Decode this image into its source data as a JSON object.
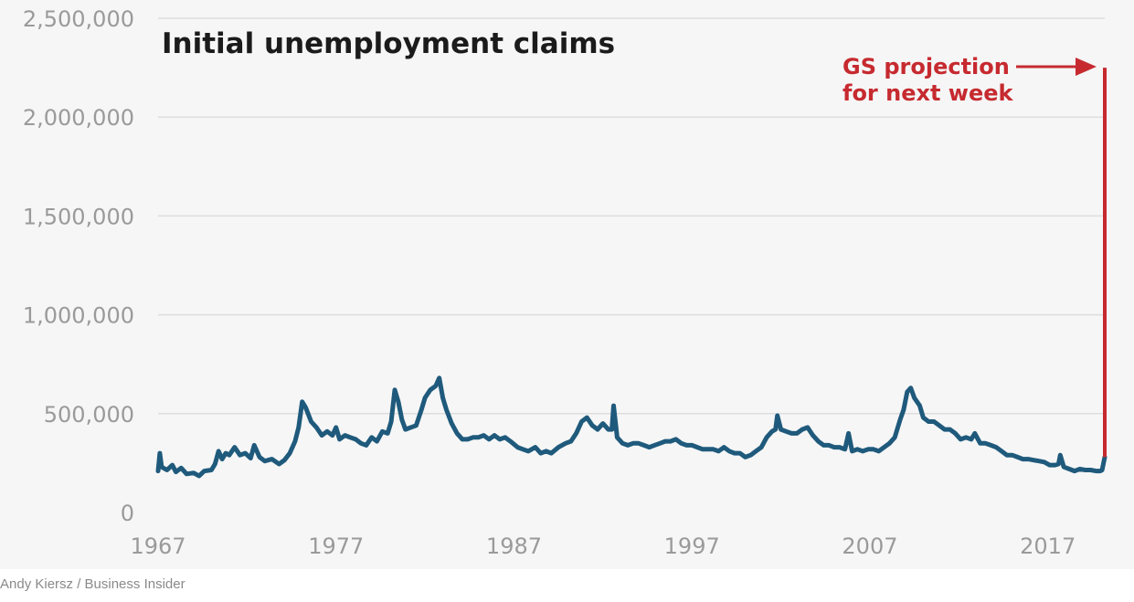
{
  "chart_data": {
    "type": "line",
    "title": "Initial unemployment claims",
    "xlabel": "",
    "ylabel": "",
    "xlim": [
      1967,
      2020.2
    ],
    "ylim": [
      0,
      2500000
    ],
    "x_ticks": [
      1967,
      1977,
      1987,
      1997,
      2007,
      2017
    ],
    "x_tick_labels": [
      "1967",
      "1977",
      "1987",
      "1997",
      "2007",
      "2017"
    ],
    "y_ticks": [
      0,
      500000,
      1000000,
      1500000,
      2000000,
      2500000
    ],
    "y_tick_labels": [
      "0",
      "500,000",
      "1,000,000",
      "1,500,000",
      "2,000,000",
      "2,500,000"
    ],
    "grid": true,
    "colors": {
      "series": "#1f5a7c",
      "annotation": "#c62a2f",
      "grid": "#dddddd",
      "background": "#f6f6f6"
    },
    "series": [
      {
        "points": [
          [
            1967.0,
            210000
          ],
          [
            1967.1,
            300000
          ],
          [
            1967.2,
            230000
          ],
          [
            1967.5,
            215000
          ],
          [
            1967.8,
            240000
          ],
          [
            1968.0,
            205000
          ],
          [
            1968.3,
            225000
          ],
          [
            1968.6,
            195000
          ],
          [
            1969.0,
            200000
          ],
          [
            1969.3,
            185000
          ],
          [
            1969.6,
            210000
          ],
          [
            1970.0,
            215000
          ],
          [
            1970.2,
            245000
          ],
          [
            1970.4,
            310000
          ],
          [
            1970.6,
            270000
          ],
          [
            1970.8,
            300000
          ],
          [
            1971.0,
            290000
          ],
          [
            1971.3,
            330000
          ],
          [
            1971.6,
            290000
          ],
          [
            1971.9,
            300000
          ],
          [
            1972.2,
            275000
          ],
          [
            1972.4,
            340000
          ],
          [
            1972.7,
            280000
          ],
          [
            1973.0,
            260000
          ],
          [
            1973.4,
            270000
          ],
          [
            1973.8,
            245000
          ],
          [
            1974.1,
            265000
          ],
          [
            1974.4,
            300000
          ],
          [
            1974.7,
            360000
          ],
          [
            1974.9,
            430000
          ],
          [
            1975.1,
            560000
          ],
          [
            1975.3,
            530000
          ],
          [
            1975.6,
            460000
          ],
          [
            1975.9,
            430000
          ],
          [
            1976.2,
            390000
          ],
          [
            1976.5,
            410000
          ],
          [
            1976.8,
            390000
          ],
          [
            1977.0,
            430000
          ],
          [
            1977.2,
            370000
          ],
          [
            1977.5,
            390000
          ],
          [
            1977.8,
            380000
          ],
          [
            1978.1,
            370000
          ],
          [
            1978.4,
            350000
          ],
          [
            1978.7,
            340000
          ],
          [
            1979.0,
            380000
          ],
          [
            1979.3,
            360000
          ],
          [
            1979.6,
            410000
          ],
          [
            1979.9,
            400000
          ],
          [
            1980.1,
            460000
          ],
          [
            1980.3,
            620000
          ],
          [
            1980.5,
            560000
          ],
          [
            1980.7,
            470000
          ],
          [
            1980.9,
            420000
          ],
          [
            1981.2,
            430000
          ],
          [
            1981.5,
            440000
          ],
          [
            1981.8,
            520000
          ],
          [
            1982.0,
            580000
          ],
          [
            1982.3,
            620000
          ],
          [
            1982.6,
            640000
          ],
          [
            1982.8,
            680000
          ],
          [
            1983.0,
            580000
          ],
          [
            1983.2,
            520000
          ],
          [
            1983.5,
            450000
          ],
          [
            1983.8,
            400000
          ],
          [
            1984.1,
            370000
          ],
          [
            1984.4,
            370000
          ],
          [
            1984.7,
            380000
          ],
          [
            1985.0,
            380000
          ],
          [
            1985.3,
            390000
          ],
          [
            1985.6,
            370000
          ],
          [
            1985.9,
            390000
          ],
          [
            1986.2,
            370000
          ],
          [
            1986.5,
            380000
          ],
          [
            1986.8,
            360000
          ],
          [
            1987.2,
            330000
          ],
          [
            1987.5,
            320000
          ],
          [
            1987.8,
            310000
          ],
          [
            1988.2,
            330000
          ],
          [
            1988.5,
            300000
          ],
          [
            1988.8,
            310000
          ],
          [
            1989.1,
            300000
          ],
          [
            1989.5,
            330000
          ],
          [
            1989.9,
            350000
          ],
          [
            1990.2,
            360000
          ],
          [
            1990.5,
            400000
          ],
          [
            1990.8,
            460000
          ],
          [
            1991.1,
            480000
          ],
          [
            1991.4,
            440000
          ],
          [
            1991.7,
            420000
          ],
          [
            1992.0,
            450000
          ],
          [
            1992.3,
            420000
          ],
          [
            1992.5,
            420000
          ],
          [
            1992.6,
            540000
          ],
          [
            1992.8,
            380000
          ],
          [
            1993.1,
            350000
          ],
          [
            1993.4,
            340000
          ],
          [
            1993.7,
            350000
          ],
          [
            1994.0,
            350000
          ],
          [
            1994.3,
            340000
          ],
          [
            1994.6,
            330000
          ],
          [
            1994.9,
            340000
          ],
          [
            1995.2,
            350000
          ],
          [
            1995.5,
            360000
          ],
          [
            1995.8,
            360000
          ],
          [
            1996.1,
            370000
          ],
          [
            1996.4,
            350000
          ],
          [
            1996.7,
            340000
          ],
          [
            1997.0,
            340000
          ],
          [
            1997.3,
            330000
          ],
          [
            1997.6,
            320000
          ],
          [
            1997.9,
            320000
          ],
          [
            1998.2,
            320000
          ],
          [
            1998.5,
            310000
          ],
          [
            1998.8,
            330000
          ],
          [
            1999.1,
            310000
          ],
          [
            1999.4,
            300000
          ],
          [
            1999.7,
            300000
          ],
          [
            2000.0,
            280000
          ],
          [
            2000.3,
            290000
          ],
          [
            2000.6,
            310000
          ],
          [
            2000.9,
            330000
          ],
          [
            2001.2,
            380000
          ],
          [
            2001.5,
            410000
          ],
          [
            2001.7,
            420000
          ],
          [
            2001.8,
            490000
          ],
          [
            2002.0,
            420000
          ],
          [
            2002.3,
            410000
          ],
          [
            2002.6,
            400000
          ],
          [
            2002.9,
            400000
          ],
          [
            2003.2,
            420000
          ],
          [
            2003.5,
            430000
          ],
          [
            2003.8,
            390000
          ],
          [
            2004.1,
            360000
          ],
          [
            2004.4,
            340000
          ],
          [
            2004.7,
            340000
          ],
          [
            2005.0,
            330000
          ],
          [
            2005.3,
            330000
          ],
          [
            2005.6,
            320000
          ],
          [
            2005.8,
            400000
          ],
          [
            2006.0,
            310000
          ],
          [
            2006.3,
            320000
          ],
          [
            2006.6,
            310000
          ],
          [
            2006.9,
            320000
          ],
          [
            2007.2,
            320000
          ],
          [
            2007.5,
            310000
          ],
          [
            2007.8,
            330000
          ],
          [
            2008.1,
            350000
          ],
          [
            2008.4,
            380000
          ],
          [
            2008.7,
            470000
          ],
          [
            2008.9,
            520000
          ],
          [
            2009.1,
            610000
          ],
          [
            2009.3,
            630000
          ],
          [
            2009.5,
            580000
          ],
          [
            2009.8,
            540000
          ],
          [
            2010.0,
            480000
          ],
          [
            2010.3,
            460000
          ],
          [
            2010.6,
            460000
          ],
          [
            2010.9,
            440000
          ],
          [
            2011.2,
            420000
          ],
          [
            2011.5,
            420000
          ],
          [
            2011.8,
            400000
          ],
          [
            2012.1,
            370000
          ],
          [
            2012.4,
            380000
          ],
          [
            2012.7,
            370000
          ],
          [
            2012.9,
            400000
          ],
          [
            2013.2,
            350000
          ],
          [
            2013.5,
            350000
          ],
          [
            2013.8,
            340000
          ],
          [
            2014.1,
            330000
          ],
          [
            2014.4,
            310000
          ],
          [
            2014.7,
            290000
          ],
          [
            2015.0,
            290000
          ],
          [
            2015.3,
            280000
          ],
          [
            2015.6,
            270000
          ],
          [
            2015.9,
            270000
          ],
          [
            2016.2,
            265000
          ],
          [
            2016.5,
            260000
          ],
          [
            2016.8,
            255000
          ],
          [
            2017.1,
            240000
          ],
          [
            2017.4,
            240000
          ],
          [
            2017.6,
            245000
          ],
          [
            2017.7,
            290000
          ],
          [
            2017.9,
            230000
          ],
          [
            2018.2,
            220000
          ],
          [
            2018.5,
            210000
          ],
          [
            2018.8,
            220000
          ],
          [
            2019.1,
            215000
          ],
          [
            2019.4,
            215000
          ],
          [
            2019.7,
            210000
          ],
          [
            2019.95,
            210000
          ],
          [
            2020.05,
            215000
          ],
          [
            2020.2,
            280000
          ]
        ]
      }
    ],
    "projection": {
      "x": 2020.2,
      "from": 280000,
      "to": 2250000
    },
    "annotations": {
      "line1": "GS projection",
      "line2": "for next week"
    }
  },
  "credit": "Andy Kiersz / Business Insider"
}
